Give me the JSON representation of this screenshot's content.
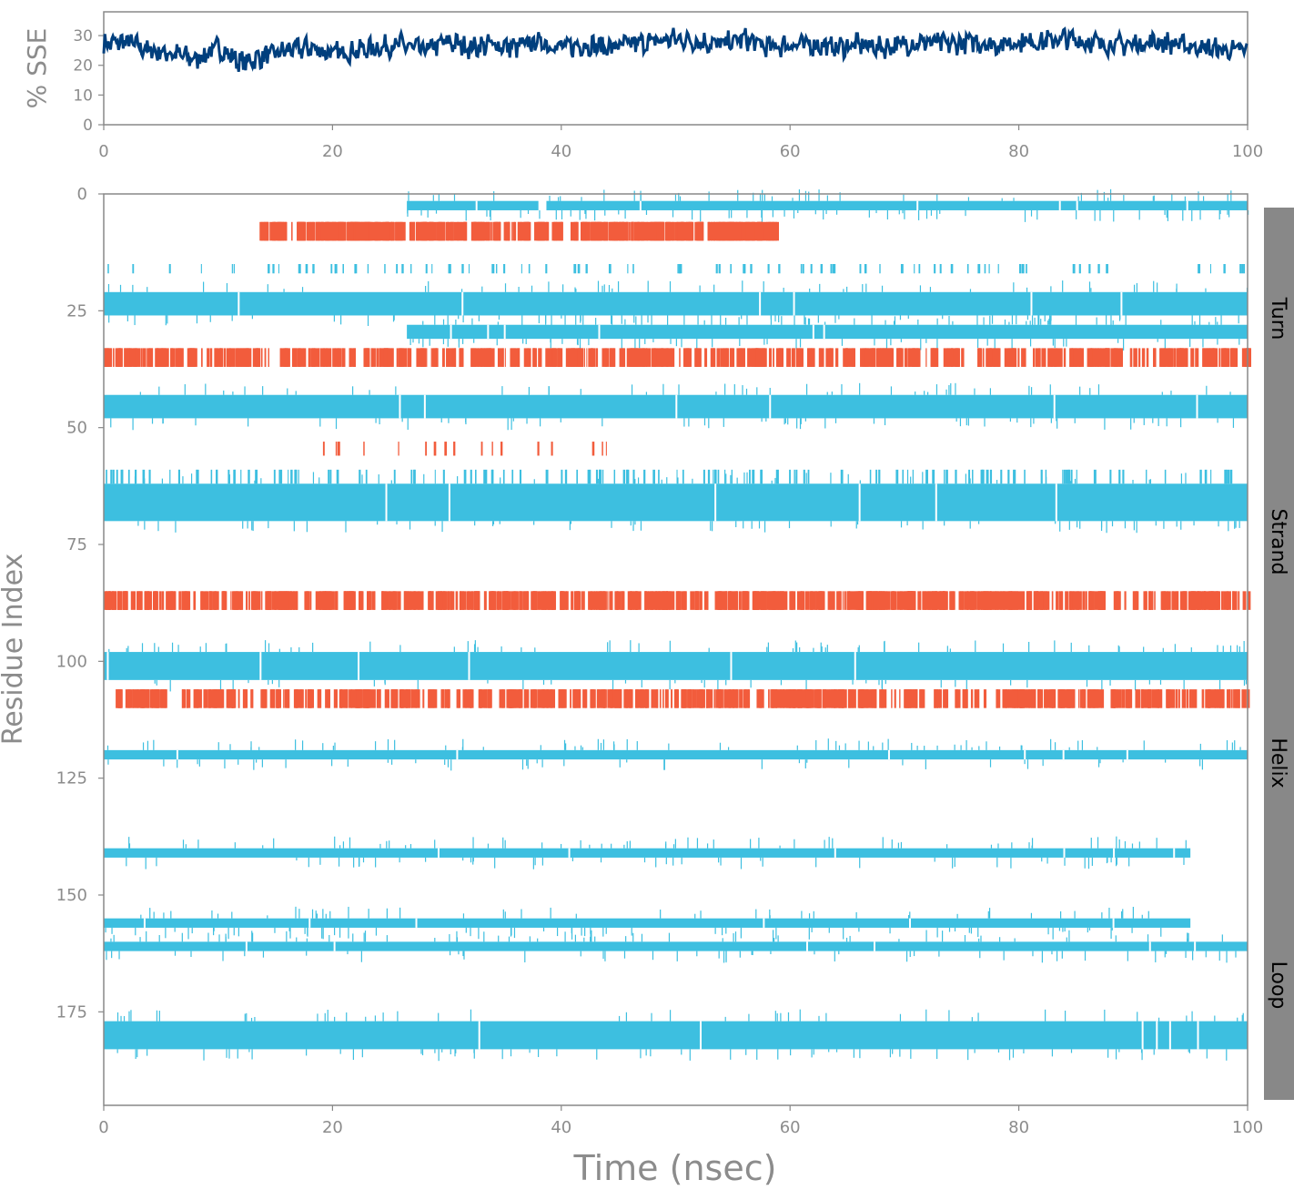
{
  "chart_data": [
    {
      "type": "line",
      "ylabel": "% SSE",
      "xlabel": "",
      "xlim": [
        0,
        100
      ],
      "ylim": [
        0,
        38
      ],
      "xticks": [
        0,
        20,
        40,
        60,
        80,
        100
      ],
      "yticks": [
        0,
        10,
        20,
        30
      ],
      "line_color": "#003f7d",
      "series": [
        {
          "x": [
            0,
            2,
            4,
            6,
            8,
            10,
            12,
            14,
            16,
            18,
            20,
            22,
            24,
            26,
            28,
            30,
            32,
            34,
            36,
            38,
            40,
            42,
            44,
            46,
            48,
            50,
            52,
            54,
            56,
            58,
            60,
            62,
            64,
            66,
            68,
            70,
            72,
            74,
            76,
            78,
            80,
            82,
            84,
            86,
            88,
            90,
            92,
            94,
            96,
            98,
            100
          ],
          "values": [
            27,
            28,
            25,
            24,
            22,
            26,
            21,
            23,
            25,
            26,
            24,
            25,
            26,
            27,
            25,
            28,
            26,
            27,
            26,
            28,
            26,
            27,
            26,
            27,
            28,
            29,
            28,
            27,
            29,
            26,
            27,
            27,
            26,
            27,
            26,
            27,
            28,
            27,
            28,
            27,
            28,
            28,
            29,
            28,
            27,
            27,
            28,
            27,
            26,
            25,
            25
          ]
        }
      ]
    },
    {
      "type": "heatmap",
      "xlabel": "Time (nsec)",
      "ylabel": "Residue Index",
      "xlim": [
        0,
        100
      ],
      "ylim": [
        195,
        0
      ],
      "xticks": [
        0,
        20,
        40,
        60,
        80,
        100
      ],
      "yticks": [
        0,
        25,
        50,
        75,
        100,
        125,
        150,
        175
      ],
      "side_labels": [
        "Turn",
        "Strand",
        "Helix",
        "Loop"
      ],
      "colors": {
        "helix": "#f25c3c",
        "strand": "#3dbfe0",
        "side_bar": "#888888"
      },
      "bands": [
        {
          "type": "strand",
          "y0": 1.5,
          "y1": 3.5,
          "x0": 26.5,
          "x1": 100,
          "gaps": [
            38,
            38.7
          ]
        },
        {
          "type": "helix",
          "y0": 6,
          "y1": 10,
          "x0": 13.5,
          "x1": 59,
          "density": 0.55
        },
        {
          "type": "strand",
          "y0": 15,
          "y1": 17,
          "x0": 0,
          "x1": 100,
          "density": 0.12
        },
        {
          "type": "strand",
          "y0": 21,
          "y1": 26,
          "x0": 0,
          "x1": 100
        },
        {
          "type": "strand",
          "y0": 28,
          "y1": 31,
          "x0": 26.5,
          "x1": 100
        },
        {
          "type": "helix",
          "y0": 33,
          "y1": 37,
          "x0": 0,
          "x1": 100,
          "density": 0.8
        },
        {
          "type": "strand",
          "y0": 43,
          "y1": 48,
          "x0": 0,
          "x1": 100
        },
        {
          "type": "helix",
          "y0": 53,
          "y1": 56,
          "x0": 16,
          "x1": 45,
          "density": 0.02
        },
        {
          "type": "strand",
          "y0": 59,
          "y1": 62,
          "x0": 0,
          "x1": 100,
          "density": 0.2
        },
        {
          "type": "strand",
          "y0": 62,
          "y1": 70,
          "x0": 0,
          "x1": 100
        },
        {
          "type": "helix",
          "y0": 85,
          "y1": 89,
          "x0": 0,
          "x1": 100,
          "density": 0.9
        },
        {
          "type": "strand",
          "y0": 98,
          "y1": 104,
          "x0": 0,
          "x1": 100
        },
        {
          "type": "helix",
          "y0": 106,
          "y1": 110,
          "x0": 1,
          "x1": 100,
          "density": 0.75
        },
        {
          "type": "strand",
          "y0": 119,
          "y1": 121,
          "x0": 0,
          "x1": 100
        },
        {
          "type": "strand",
          "y0": 140,
          "y1": 142,
          "x0": 0,
          "x1": 95
        },
        {
          "type": "strand",
          "y0": 155,
          "y1": 157,
          "x0": 0,
          "x1": 95
        },
        {
          "type": "strand",
          "y0": 160,
          "y1": 162,
          "x0": 0,
          "x1": 100
        },
        {
          "type": "strand",
          "y0": 177,
          "y1": 183,
          "x0": 0,
          "x1": 100
        }
      ]
    }
  ]
}
